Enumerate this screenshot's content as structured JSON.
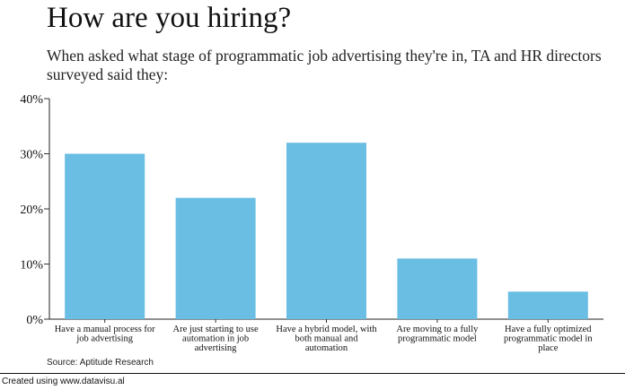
{
  "title": "How are you hiring?",
  "subtitle": "When asked what stage of programmatic job advertising they're in, TA and HR directors surveyed said they:",
  "source": "Source: Aptitude Research",
  "credit": "Created using www.datavisu.al",
  "colors": {
    "bar": "#6abde3",
    "axis": "#222222",
    "grid": "#333333"
  },
  "chart_data": {
    "type": "bar",
    "title": "How are you hiring?",
    "xlabel": "",
    "ylabel": "",
    "ylim": [
      0,
      40
    ],
    "yticks": [
      0,
      10,
      20,
      30,
      40
    ],
    "ytick_labels": [
      "0%",
      "10%",
      "20%",
      "30%",
      "40%"
    ],
    "grid": false,
    "categories": [
      [
        "Have a manual process for",
        "job advertising"
      ],
      [
        "Are just starting to use",
        "automation in job",
        "advertising"
      ],
      [
        "Have a hybrid model, with",
        "both manual and",
        "automation"
      ],
      [
        "Are moving to a fully",
        "programmatic model"
      ],
      [
        "Have a fully optimized",
        "programmatic model in",
        "place"
      ]
    ],
    "values": [
      30,
      22,
      32,
      11,
      5
    ]
  }
}
